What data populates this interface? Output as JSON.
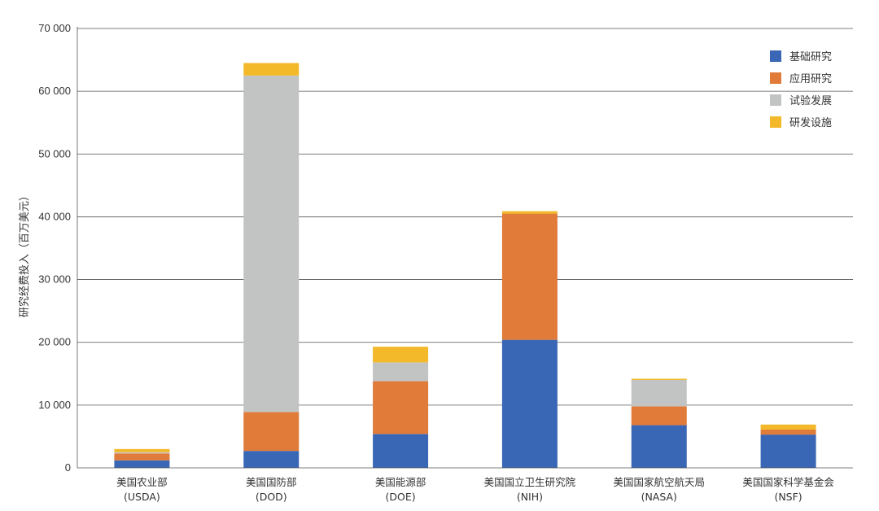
{
  "chart_data": {
    "type": "bar",
    "stacked": true,
    "ylabel": "研究经费投入（百万美元）",
    "ylim": [
      0,
      70000
    ],
    "yticks": [
      0,
      10000,
      20000,
      30000,
      40000,
      50000,
      60000,
      70000
    ],
    "ytick_labels": [
      "0",
      "10 000",
      "20 000",
      "30 000",
      "40 000",
      "50 000",
      "60 000",
      "70 000"
    ],
    "grid": true,
    "legend_position": "top-right",
    "categories": [
      {
        "name": "美国农业部",
        "abbr": "(USDA)"
      },
      {
        "name": "美国国防部",
        "abbr": "(DOD)"
      },
      {
        "name": "美国能源部",
        "abbr": "(DOE)"
      },
      {
        "name": "美国国立卫生研究院",
        "abbr": "(NIH)"
      },
      {
        "name": "美国国家航空航天局",
        "abbr": "(NASA)"
      },
      {
        "name": "美国国家科学基金会",
        "abbr": "(NSF)"
      }
    ],
    "series": [
      {
        "name": "基础研究",
        "color": "#3a67b5",
        "values": [
          1200,
          2700,
          5400,
          20400,
          6800,
          5300
        ]
      },
      {
        "name": "应用研究",
        "color": "#e07b39",
        "values": [
          1100,
          6200,
          8400,
          20100,
          3000,
          800
        ]
      },
      {
        "name": "试验发展",
        "color": "#c2c3c3",
        "values": [
          200,
          53600,
          3000,
          0,
          4200,
          0
        ]
      },
      {
        "name": "研发设施",
        "color": "#f3b92a",
        "values": [
          500,
          2000,
          2500,
          400,
          200,
          800
        ]
      }
    ]
  }
}
